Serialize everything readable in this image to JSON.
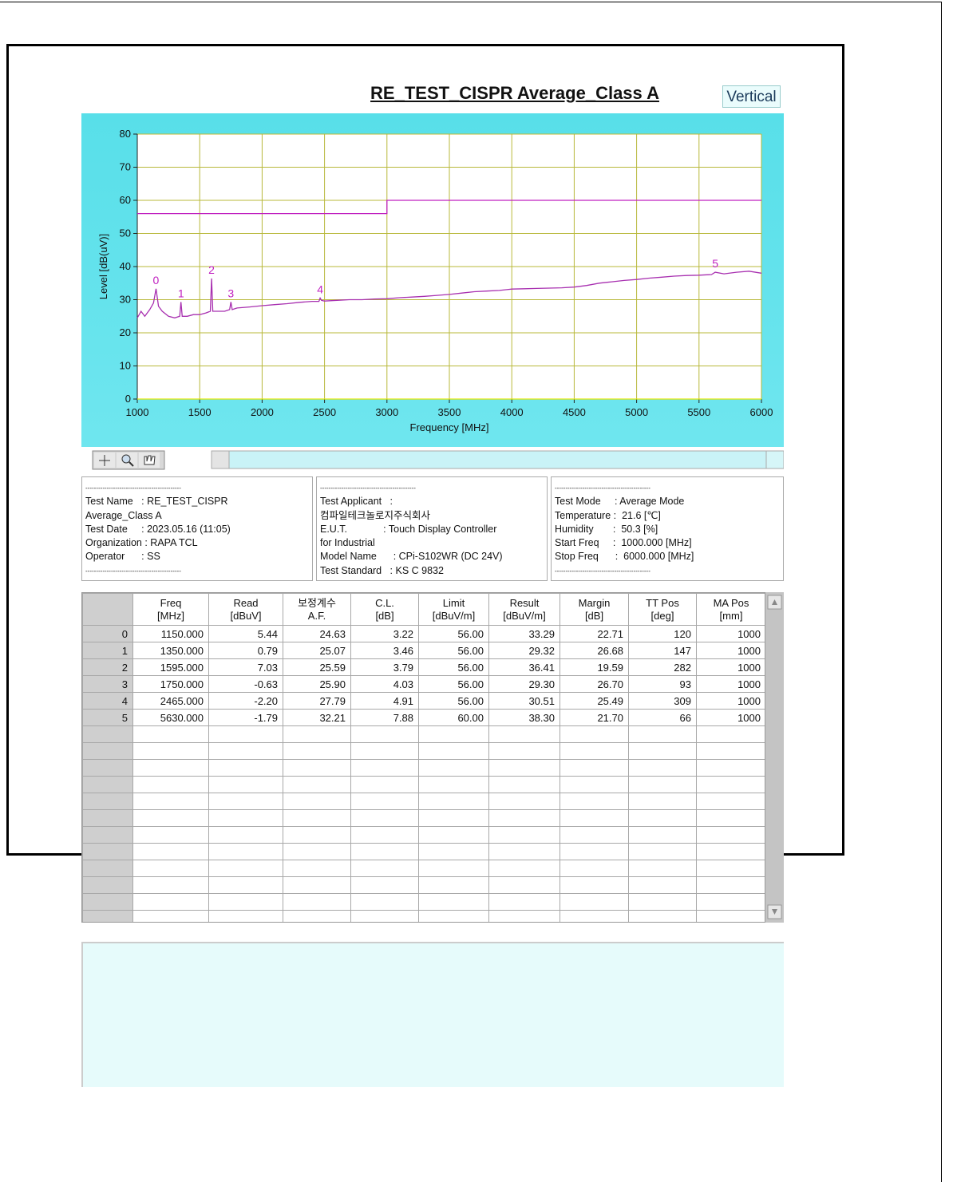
{
  "title": "RE_TEST_CISPR Average_Class A",
  "polarization": "Vertical",
  "chart_data": {
    "type": "line",
    "xlabel": "Frequency [MHz]",
    "ylabel": "Level [dB(uV)]",
    "xlim": [
      1000,
      6000
    ],
    "ylim": [
      0,
      80
    ],
    "xticks": [
      1000,
      1500,
      2000,
      2500,
      3000,
      3500,
      4000,
      4500,
      5000,
      5500,
      6000
    ],
    "yticks": [
      0,
      10,
      20,
      30,
      40,
      50,
      60,
      70,
      80
    ],
    "grid": true,
    "grid_color": "#b8b83a",
    "series": [
      {
        "color": "#c020c0",
        "x": [
          1000,
          3000,
          3000,
          6000
        ],
        "values": [
          56,
          56,
          60,
          60
        ]
      },
      {
        "color": "#e8e800",
        "x": [
          1000,
          6000
        ],
        "values": [
          0,
          0
        ]
      },
      {
        "color": "#a830b0",
        "x": [
          1000,
          1030,
          1060,
          1100,
          1130,
          1150,
          1170,
          1200,
          1250,
          1300,
          1340,
          1350,
          1360,
          1400,
          1450,
          1500,
          1550,
          1585,
          1595,
          1605,
          1650,
          1700,
          1740,
          1750,
          1760,
          1800,
          1900,
          2000,
          2100,
          2200,
          2300,
          2400,
          2455,
          2465,
          2475,
          2500,
          2600,
          2700,
          2800,
          2900,
          3000,
          3100,
          3200,
          3300,
          3400,
          3500,
          3600,
          3700,
          3800,
          3900,
          4000,
          4100,
          4200,
          4300,
          4400,
          4500,
          4600,
          4700,
          4800,
          4900,
          5000,
          5100,
          5200,
          5300,
          5400,
          5500,
          5600,
          5630,
          5700,
          5800,
          5900,
          6000
        ],
        "values": [
          24.5,
          26.5,
          25,
          27,
          29,
          33.3,
          28,
          26.5,
          25,
          24.5,
          25,
          29.3,
          25,
          25,
          25.5,
          25.5,
          26,
          26.5,
          36.4,
          26.5,
          26.5,
          26.5,
          27,
          29.3,
          27,
          27.5,
          27.8,
          28.2,
          28.5,
          28.8,
          29.2,
          29.5,
          29.5,
          30.5,
          29.8,
          29.6,
          29.8,
          30,
          30,
          30.2,
          30.3,
          30.6,
          30.8,
          31,
          31.3,
          31.6,
          32,
          32.4,
          32.6,
          32.8,
          33.2,
          33.3,
          33.4,
          33.5,
          33.6,
          33.8,
          34.3,
          35,
          35.4,
          35.8,
          36.1,
          36.5,
          36.8,
          37.1,
          37.3,
          37.4,
          37.6,
          38.3,
          37.8,
          38.3,
          38.6,
          38
        ]
      }
    ],
    "markers": [
      {
        "label": "0",
        "x": 1150,
        "y": 33.29
      },
      {
        "label": "1",
        "x": 1350,
        "y": 29.32
      },
      {
        "label": "2",
        "x": 1595,
        "y": 36.41
      },
      {
        "label": "3",
        "x": 1750,
        "y": 29.3
      },
      {
        "label": "4",
        "x": 2465,
        "y": 30.51
      },
      {
        "label": "5",
        "x": 5630,
        "y": 38.3
      }
    ]
  },
  "info": [
    [
      "---------------------------------------------",
      "Test Name   : RE_TEST_CISPR",
      "Average_Class A",
      "Test Date     : 2023.05.16 (11:05)",
      "Organization : RAPA TCL",
      "Operator      : SS",
      "---------------------------------------------"
    ],
    [
      "---------------------------------------------",
      "Test Applicant   :",
      "컴파일테크놀로지주식회사",
      "E.U.T.             : Touch Display Controller",
      "for Industrial",
      "Model Name      : CPi-S102WR (DC 24V)",
      "Test Standard   : KS C 9832"
    ],
    [
      "---------------------------------------------",
      "Test Mode     : Average Mode",
      "Temperature :  21.6 [℃]",
      "Humidity       :  50.3 [%]",
      "Start Freq     :  1000.000 [MHz]",
      "Stop Freq      :  6000.000 [MHz]",
      "---------------------------------------------"
    ]
  ],
  "table": {
    "headers": [
      [
        "Freq",
        "[MHz]"
      ],
      [
        "Read",
        "[dBuV]"
      ],
      [
        "보정계수",
        "A.F."
      ],
      [
        "C.L.",
        "[dB]"
      ],
      [
        "Limit",
        "[dBuV/m]"
      ],
      [
        "Result",
        "[dBuV/m]"
      ],
      [
        "Margin",
        "[dB]"
      ],
      [
        "TT Pos",
        "[deg]"
      ],
      [
        "MA Pos",
        "[mm]"
      ]
    ],
    "rows": [
      [
        "0",
        "1150.000",
        "5.44",
        "24.63",
        "3.22",
        "56.00",
        "33.29",
        "22.71",
        "120",
        "1000"
      ],
      [
        "1",
        "1350.000",
        "0.79",
        "25.07",
        "3.46",
        "56.00",
        "29.32",
        "26.68",
        "147",
        "1000"
      ],
      [
        "2",
        "1595.000",
        "7.03",
        "25.59",
        "3.79",
        "56.00",
        "36.41",
        "19.59",
        "282",
        "1000"
      ],
      [
        "3",
        "1750.000",
        "-0.63",
        "25.90",
        "4.03",
        "56.00",
        "29.30",
        "26.70",
        "93",
        "1000"
      ],
      [
        "4",
        "2465.000",
        "-2.20",
        "27.79",
        "4.91",
        "56.00",
        "30.51",
        "25.49",
        "309",
        "1000"
      ],
      [
        "5",
        "5630.000",
        "-1.79",
        "32.21",
        "7.88",
        "60.00",
        "38.30",
        "21.70",
        "66",
        "1000"
      ]
    ]
  }
}
